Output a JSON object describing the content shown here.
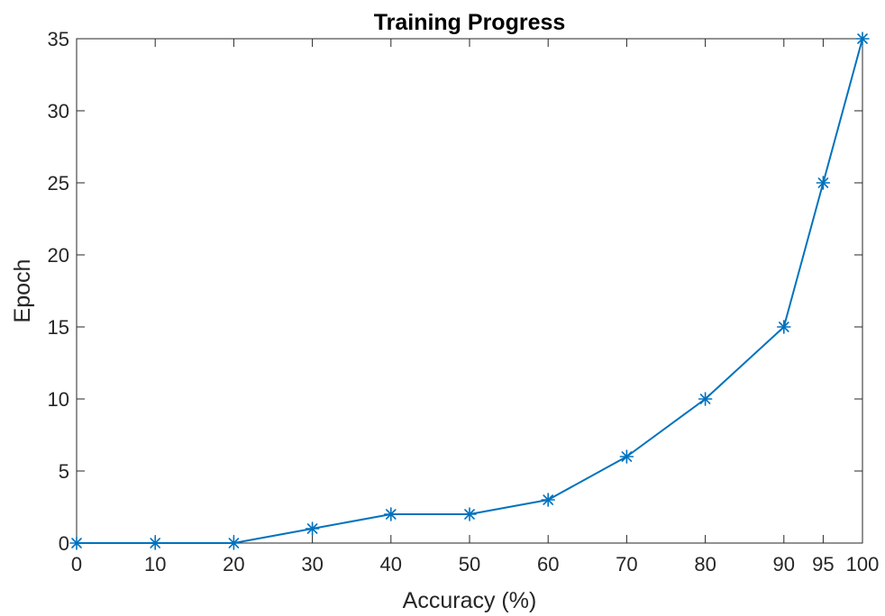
{
  "chart_data": {
    "type": "line",
    "title": "Training Progress",
    "xlabel": "Accuracy (%)",
    "ylabel": "Epoch",
    "x": [
      0,
      10,
      20,
      30,
      40,
      50,
      60,
      70,
      80,
      90,
      95,
      100
    ],
    "series": [
      {
        "values": [
          0,
          0,
          0,
          1,
          2,
          2,
          3,
          6,
          10,
          15,
          25,
          35
        ],
        "color": "#0072BD",
        "marker": "asterisk"
      }
    ],
    "xlim": [
      0,
      100
    ],
    "ylim": [
      0,
      35
    ],
    "x_ticks": [
      "0",
      "10",
      "20",
      "30",
      "40",
      "50",
      "60",
      "70",
      "80",
      "90",
      "95",
      "100"
    ],
    "x_tick_values": [
      0,
      10,
      20,
      30,
      40,
      50,
      60,
      70,
      80,
      90,
      95,
      100
    ],
    "y_ticks": [
      "0",
      "5",
      "10",
      "15",
      "20",
      "25",
      "30",
      "35"
    ],
    "y_tick_values": [
      0,
      5,
      10,
      15,
      20,
      25,
      30,
      35
    ],
    "grid": false,
    "legend": false
  }
}
